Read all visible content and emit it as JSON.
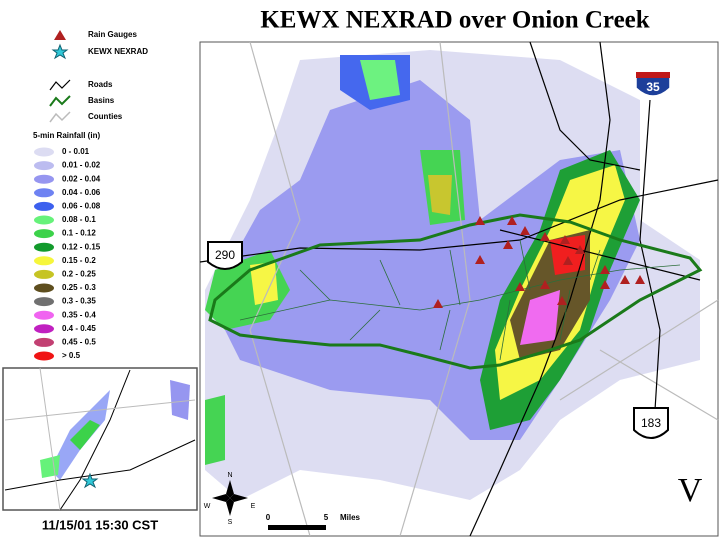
{
  "title": "KEWX NEXRAD over Onion Creek",
  "legend": {
    "items": [
      {
        "label": "Rain Gauges"
      },
      {
        "label": "KEWX NEXRAD"
      },
      {
        "label": "Roads"
      },
      {
        "label": "Basins"
      },
      {
        "label": "Counties"
      }
    ],
    "rainfall_title": "5-min Rainfall (in)",
    "rainfall_bins": [
      {
        "label": "0 - 0.01",
        "color": "#dcdcf2"
      },
      {
        "label": "0.01 - 0.02",
        "color": "#bcbcf0"
      },
      {
        "label": "0.02 - 0.04",
        "color": "#9696f0"
      },
      {
        "label": "0.04 - 0.06",
        "color": "#6e82f2"
      },
      {
        "label": "0.06 - 0.08",
        "color": "#3c60ee"
      },
      {
        "label": "0.08 - 0.1",
        "color": "#66f27a"
      },
      {
        "label": "0.1 - 0.12",
        "color": "#3cd24a"
      },
      {
        "label": "0.12 - 0.15",
        "color": "#129a2c"
      },
      {
        "label": "0.15 - 0.2",
        "color": "#f6f63c"
      },
      {
        "label": "0.2 - 0.25",
        "color": "#c6c424"
      },
      {
        "label": "0.25 - 0.3",
        "color": "#5e4e1e"
      },
      {
        "label": "0.3 - 0.35",
        "color": "#707070"
      },
      {
        "label": "0.35 - 0.4",
        "color": "#f064f0"
      },
      {
        "label": "0.4 - 0.45",
        "color": "#c020c0"
      },
      {
        "label": "0.45 - 0.5",
        "color": "#c24072"
      },
      {
        "label": "> 0.5",
        "color": "#f01414"
      }
    ]
  },
  "timestamp": "11/15/01 15:30 CST",
  "map": {
    "shields": [
      "290",
      "35",
      "183"
    ],
    "compass": [
      "N",
      "E",
      "S",
      "W"
    ],
    "scale": {
      "labels": [
        "0",
        "5"
      ],
      "unit": "Miles"
    },
    "logo": "V"
  }
}
